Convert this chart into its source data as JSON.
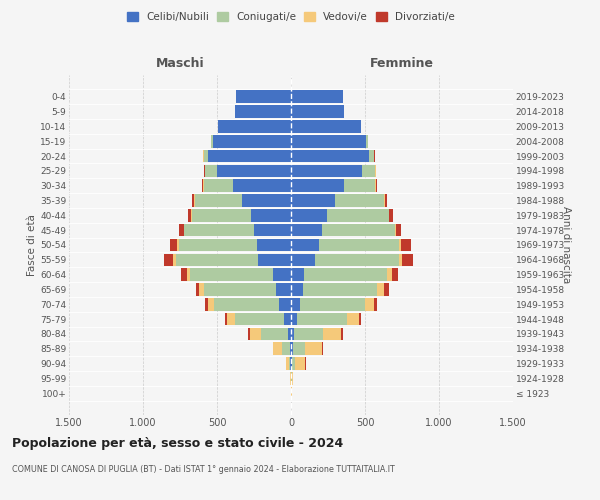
{
  "age_groups": [
    "100+",
    "95-99",
    "90-94",
    "85-89",
    "80-84",
    "75-79",
    "70-74",
    "65-69",
    "60-64",
    "55-59",
    "50-54",
    "45-49",
    "40-44",
    "35-39",
    "30-34",
    "25-29",
    "20-24",
    "15-19",
    "10-14",
    "5-9",
    "0-4"
  ],
  "birth_years": [
    "≤ 1923",
    "1924-1928",
    "1929-1933",
    "1934-1938",
    "1939-1943",
    "1944-1948",
    "1949-1953",
    "1954-1958",
    "1959-1963",
    "1964-1968",
    "1969-1973",
    "1974-1978",
    "1979-1983",
    "1984-1988",
    "1989-1993",
    "1994-1998",
    "1999-2003",
    "2004-2008",
    "2009-2013",
    "2014-2018",
    "2019-2023"
  ],
  "colors": {
    "celibi": "#4472C4",
    "coniugati": "#AECBA1",
    "vedovi": "#F5C97A",
    "divorziati": "#C0392B"
  },
  "maschi": {
    "celibi": [
      2,
      2,
      4,
      10,
      20,
      50,
      80,
      100,
      120,
      220,
      230,
      250,
      270,
      330,
      390,
      500,
      560,
      530,
      490,
      380,
      370
    ],
    "coniugati": [
      0,
      0,
      10,
      50,
      180,
      330,
      440,
      490,
      560,
      560,
      530,
      470,
      400,
      320,
      200,
      80,
      30,
      10,
      5,
      0,
      0
    ],
    "vedovi": [
      0,
      2,
      20,
      60,
      80,
      50,
      40,
      30,
      20,
      15,
      10,
      5,
      5,
      3,
      2,
      2,
      2,
      0,
      0,
      0,
      0
    ],
    "divorziati": [
      0,
      0,
      0,
      5,
      10,
      15,
      20,
      25,
      40,
      60,
      50,
      30,
      20,
      15,
      8,
      5,
      3,
      0,
      0,
      0,
      0
    ]
  },
  "femmine": {
    "celibi": [
      2,
      3,
      6,
      12,
      18,
      40,
      60,
      80,
      90,
      160,
      190,
      210,
      240,
      300,
      360,
      480,
      530,
      510,
      470,
      360,
      350
    ],
    "coniugati": [
      0,
      2,
      20,
      80,
      200,
      340,
      440,
      500,
      560,
      570,
      540,
      490,
      420,
      330,
      210,
      90,
      30,
      10,
      5,
      0,
      0
    ],
    "vedovi": [
      2,
      10,
      70,
      120,
      120,
      80,
      60,
      50,
      30,
      20,
      15,
      10,
      5,
      3,
      2,
      2,
      2,
      0,
      0,
      0,
      0
    ],
    "divorziati": [
      0,
      0,
      2,
      5,
      10,
      15,
      20,
      30,
      45,
      75,
      65,
      35,
      25,
      18,
      10,
      5,
      3,
      0,
      0,
      0,
      0
    ]
  },
  "xlim": 1500,
  "xticklabels": [
    "1.500",
    "1.000",
    "500",
    "0",
    "500",
    "1.000",
    "1.500"
  ],
  "title": "Popolazione per età, sesso e stato civile - 2024",
  "subtitle": "COMUNE DI CANOSA DI PUGLIA (BT) - Dati ISTAT 1° gennaio 2024 - Elaborazione TUTTAITALIA.IT",
  "ylabel_left": "Fasce di età",
  "ylabel_right": "Anni di nascita",
  "legend_labels": [
    "Celibi/Nubili",
    "Coniugati/e",
    "Vedovi/e",
    "Divorziati/e"
  ],
  "bg_color": "#F5F5F5",
  "grid_color": "#CCCCCC"
}
